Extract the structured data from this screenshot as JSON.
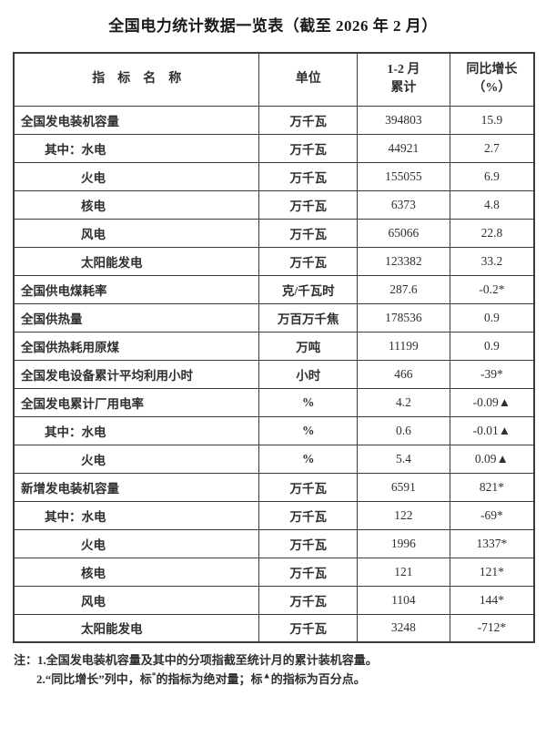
{
  "title": "全国电力统计数据一览表（截至 2026 年 2 月）",
  "table": {
    "columns": [
      {
        "label": "指　标　名　称"
      },
      {
        "label": "单位"
      },
      {
        "label_line1": "1-2 月",
        "label_line2": "累计"
      },
      {
        "label_line1": "同比增长",
        "label_line2": "（%）"
      }
    ],
    "rows": [
      {
        "indicator": "全国发电装机容量",
        "indent": 0,
        "unit": "万千瓦",
        "value": "394803",
        "yoy": "15.9"
      },
      {
        "indicator": "其中：水电",
        "indent": 1,
        "unit": "万千瓦",
        "value": "44921",
        "yoy": "2.7"
      },
      {
        "indicator": "火电",
        "indent": 2,
        "unit": "万千瓦",
        "value": "155055",
        "yoy": "6.9"
      },
      {
        "indicator": "核电",
        "indent": 2,
        "unit": "万千瓦",
        "value": "6373",
        "yoy": "4.8"
      },
      {
        "indicator": "风电",
        "indent": 2,
        "unit": "万千瓦",
        "value": "65066",
        "yoy": "22.8"
      },
      {
        "indicator": "太阳能发电",
        "indent": 2,
        "unit": "万千瓦",
        "value": "123382",
        "yoy": "33.2"
      },
      {
        "indicator": "全国供电煤耗率",
        "indent": 0,
        "unit": "克/千瓦时",
        "value": "287.6",
        "yoy": "-0.2*"
      },
      {
        "indicator": "全国供热量",
        "indent": 0,
        "unit": "万百万千焦",
        "value": "178536",
        "yoy": "0.9"
      },
      {
        "indicator": "全国供热耗用原煤",
        "indent": 0,
        "unit": "万吨",
        "value": "11199",
        "yoy": "0.9"
      },
      {
        "indicator": "全国发电设备累计平均利用小时",
        "indent": 0,
        "unit": "小时",
        "value": "466",
        "yoy": "-39*"
      },
      {
        "indicator": "全国发电累计厂用电率",
        "indent": 0,
        "unit": "%",
        "value": "4.2",
        "yoy": "-0.09▲"
      },
      {
        "indicator": "其中：水电",
        "indent": 1,
        "unit": "%",
        "value": "0.6",
        "yoy": "-0.01▲"
      },
      {
        "indicator": "火电",
        "indent": 2,
        "unit": "%",
        "value": "5.4",
        "yoy": "0.09▲"
      },
      {
        "indicator": "新增发电装机容量",
        "indent": 0,
        "unit": "万千瓦",
        "value": "6591",
        "yoy": "821*"
      },
      {
        "indicator": "其中：水电",
        "indent": 1,
        "unit": "万千瓦",
        "value": "122",
        "yoy": "-69*"
      },
      {
        "indicator": "火电",
        "indent": 2,
        "unit": "万千瓦",
        "value": "1996",
        "yoy": "1337*"
      },
      {
        "indicator": "核电",
        "indent": 2,
        "unit": "万千瓦",
        "value": "121",
        "yoy": "121*"
      },
      {
        "indicator": "风电",
        "indent": 2,
        "unit": "万千瓦",
        "value": "1104",
        "yoy": "144*"
      },
      {
        "indicator": "太阳能发电",
        "indent": 2,
        "unit": "万千瓦",
        "value": "3248",
        "yoy": "-712*"
      }
    ]
  },
  "notes": {
    "line1": "注：1.全国发电装机容量及其中的分项指截至统计月的累计装机容量。",
    "line2_parts": {
      "a": "2.“同比增长”列中，标",
      "sup1": "*",
      "b": "的指标为绝对量；标",
      "sup2": "▲",
      "c": "的指标为百分点。"
    }
  },
  "colors": {
    "text": "#2f2f2f",
    "border": "#3a3a3a",
    "background": "#ffffff"
  }
}
